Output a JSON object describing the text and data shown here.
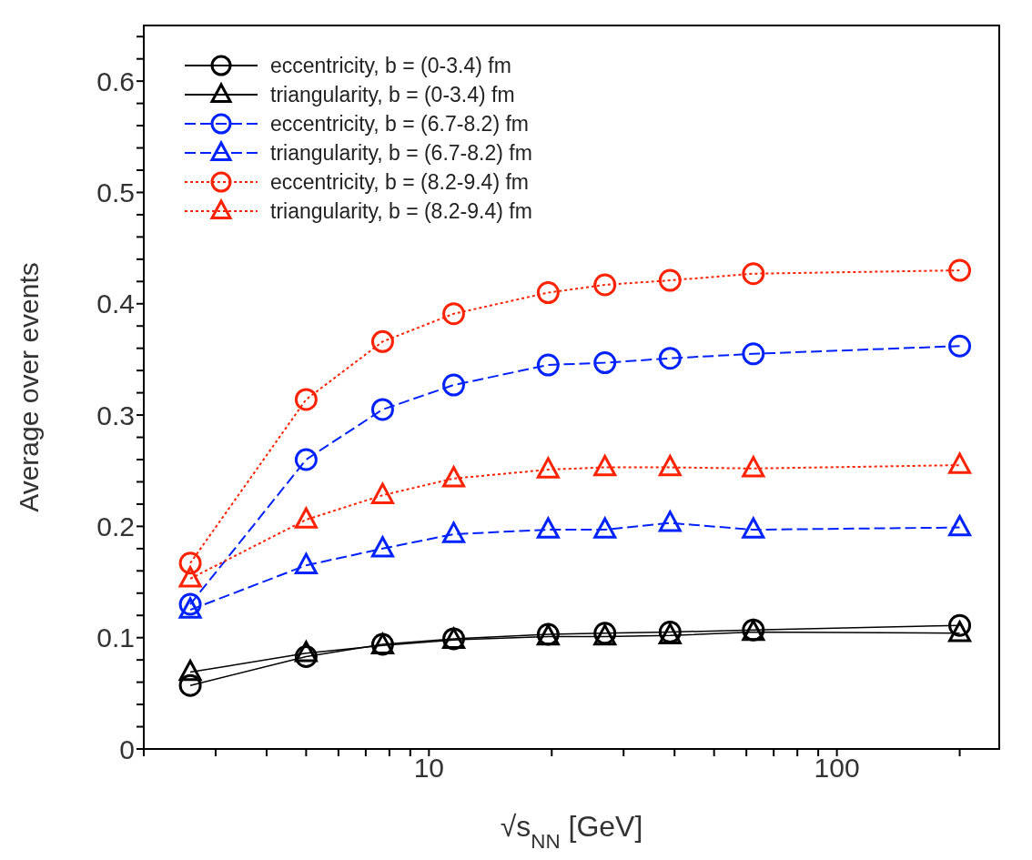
{
  "chart_data": {
    "type": "line",
    "xlabel": "√s$_{NN}$ [GeV]",
    "ylabel": "Average over events",
    "log": "x",
    "x": [
      2.6,
      5,
      7.7,
      11.5,
      19.6,
      27,
      39,
      62.4,
      200
    ],
    "xlim": [
      2,
      250
    ],
    "xticks": [
      {
        "value": 2,
        "label": null
      },
      {
        "value": 3,
        "label": null
      },
      {
        "value": 4,
        "label": null
      },
      {
        "value": 5,
        "label": null
      },
      {
        "value": 6,
        "label": null
      },
      {
        "value": 7,
        "label": null
      },
      {
        "value": 8,
        "label": null
      },
      {
        "value": 9,
        "label": null
      },
      10,
      {
        "value": 20,
        "label": null
      },
      {
        "value": 30,
        "label": null
      },
      {
        "value": 40,
        "label": null
      },
      {
        "value": 50,
        "label": null
      },
      {
        "value": 60,
        "label": null
      },
      {
        "value": 70,
        "label": null
      },
      {
        "value": 80,
        "label": null
      },
      {
        "value": 90,
        "label": null
      },
      100,
      {
        "value": 200,
        "label": null
      }
    ],
    "ylim": [
      0,
      0.65
    ],
    "yticks": [
      0,
      {
        "value": 0.02,
        "label": null
      },
      {
        "value": 0.04,
        "label": null
      },
      {
        "value": 0.06,
        "label": null
      },
      {
        "value": 0.08,
        "label": null
      },
      0.1,
      {
        "value": 0.12,
        "label": null
      },
      {
        "value": 0.14,
        "label": null
      },
      {
        "value": 0.16,
        "label": null
      },
      {
        "value": 0.18,
        "label": null
      },
      0.2,
      {
        "value": 0.22,
        "label": null
      },
      {
        "value": 0.24,
        "label": null
      },
      {
        "value": 0.26,
        "label": null
      },
      {
        "value": 0.28,
        "label": null
      },
      0.3,
      {
        "value": 0.32,
        "label": null
      },
      {
        "value": 0.34,
        "label": null
      },
      {
        "value": 0.36,
        "label": null
      },
      {
        "value": 0.38,
        "label": null
      },
      0.4,
      {
        "value": 0.42,
        "label": null
      },
      {
        "value": 0.44,
        "label": null
      },
      {
        "value": 0.46,
        "label": null
      },
      {
        "value": 0.48,
        "label": null
      },
      0.5,
      {
        "value": 0.52,
        "label": null
      },
      {
        "value": 0.54,
        "label": null
      },
      {
        "value": 0.56,
        "label": null
      },
      {
        "value": 0.58,
        "label": null
      },
      0.6,
      {
        "value": 0.62,
        "label": null
      },
      {
        "value": 0.64,
        "label": null
      }
    ],
    "grid": false,
    "legend": "top left",
    "series": [
      {
        "name": "eccentricity, b = (0-3.4) fm",
        "color": "#000000",
        "marker": "circle",
        "line_style": "solid",
        "values": [
          0.057,
          0.083,
          0.094,
          0.099,
          0.103,
          0.104,
          0.105,
          0.107,
          0.111
        ]
      },
      {
        "name": "triangularity, b = (0-3.4) fm",
        "color": "#000000",
        "marker": "triangle",
        "line_style": "solid",
        "values": [
          0.069,
          0.086,
          0.093,
          0.098,
          0.101,
          0.101,
          0.102,
          0.105,
          0.104
        ]
      },
      {
        "name": "eccentricity, b = (6.7-8.2) fm",
        "color": "#0022ff",
        "marker": "circle",
        "line_style": "dashed",
        "values": [
          0.13,
          0.26,
          0.305,
          0.327,
          0.345,
          0.347,
          0.351,
          0.355,
          0.362
        ]
      },
      {
        "name": "triangularity, b = (6.7-8.2) fm",
        "color": "#0022ff",
        "marker": "triangle",
        "line_style": "dashed",
        "values": [
          0.125,
          0.165,
          0.18,
          0.193,
          0.197,
          0.197,
          0.203,
          0.197,
          0.199
        ]
      },
      {
        "name": "eccentricity, b = (8.2-9.4) fm",
        "color": "#ff2200",
        "marker": "circle",
        "line_style": "dotted",
        "values": [
          0.167,
          0.314,
          0.366,
          0.391,
          0.41,
          0.417,
          0.421,
          0.427,
          0.43
        ]
      },
      {
        "name": "triangularity, b = (8.2-9.4) fm",
        "color": "#ff2200",
        "marker": "triangle",
        "line_style": "dotted",
        "values": [
          0.153,
          0.206,
          0.228,
          0.243,
          0.251,
          0.253,
          0.253,
          0.252,
          0.255
        ]
      }
    ]
  }
}
